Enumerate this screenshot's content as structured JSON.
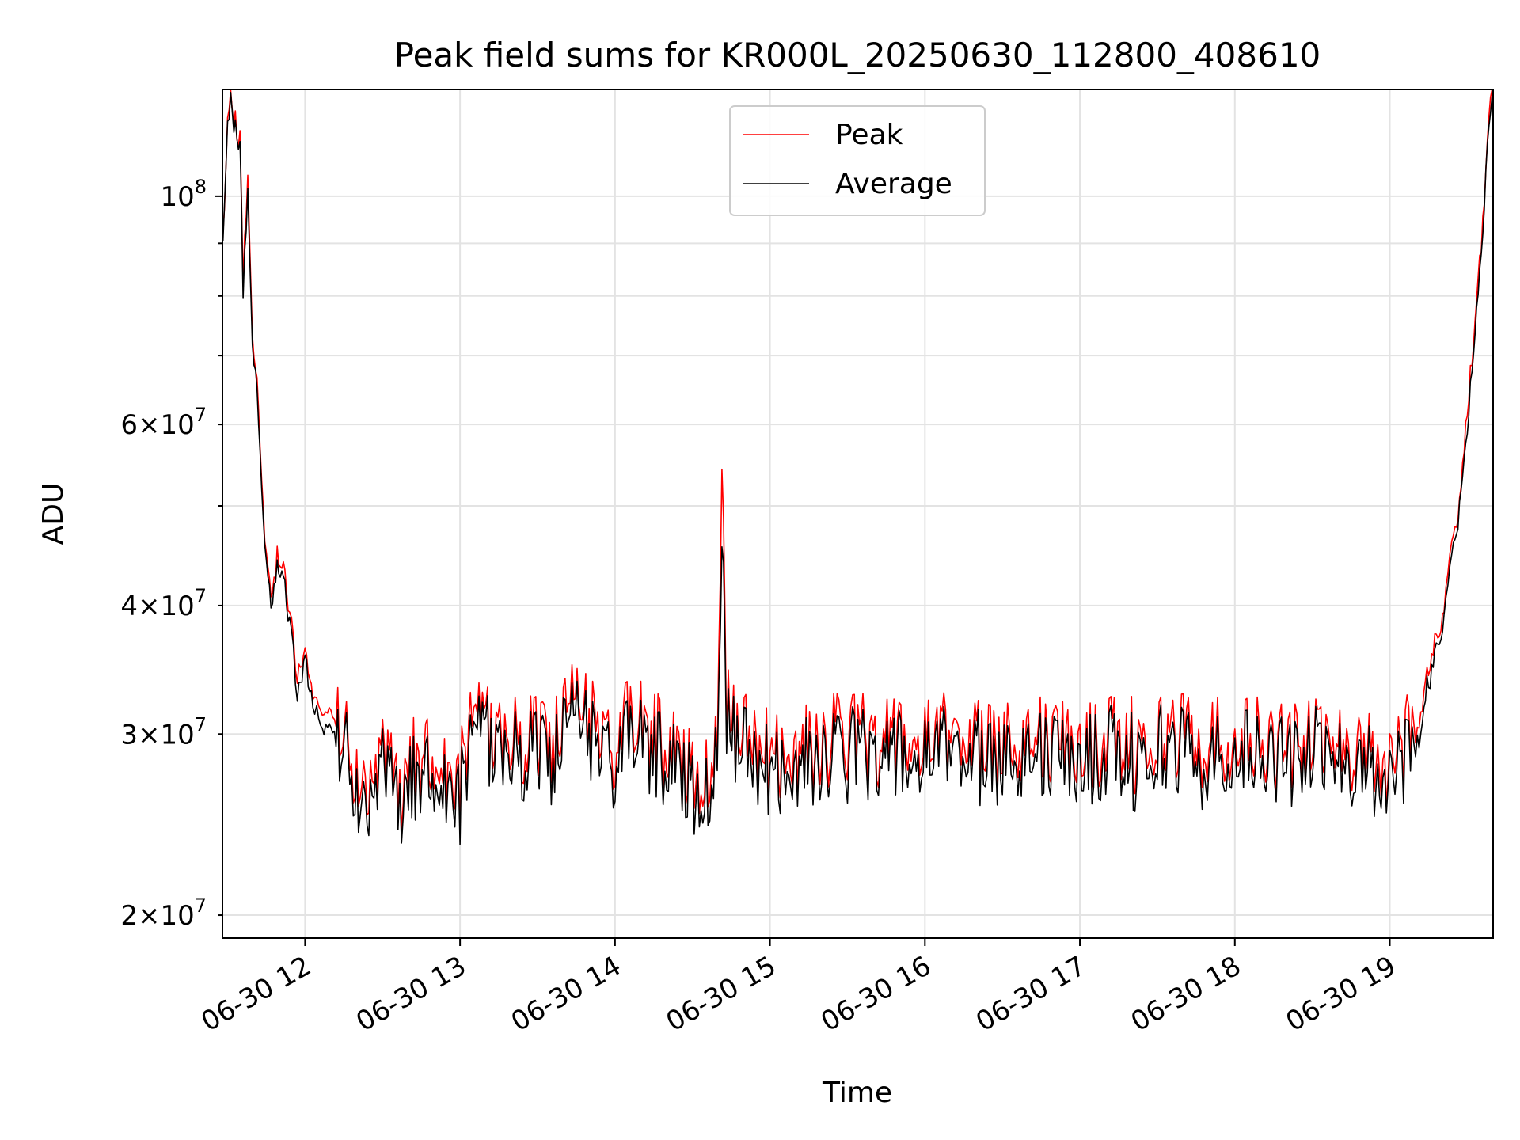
{
  "chart_data": {
    "type": "line",
    "title": "Peak field sums for KR000L_20250630_112800_408610",
    "xlabel": "Time",
    "ylabel": "ADU",
    "x_axis": {
      "type": "time",
      "range": [
        "2025-06-30 11:28",
        "2025-06-30 19:40"
      ],
      "tick_labels": [
        "06-30 12",
        "06-30 13",
        "06-30 14",
        "06-30 15",
        "06-30 16",
        "06-30 17",
        "06-30 18",
        "06-30 19"
      ],
      "tick_hours": [
        12,
        13,
        14,
        15,
        16,
        17,
        18,
        19
      ]
    },
    "y_axis": {
      "scale": "log",
      "range": [
        19000000,
        127000000
      ],
      "major_ticks": [
        100000000
      ],
      "major_tick_labels": [
        "10^8"
      ],
      "minor_ticks": [
        20000000,
        30000000,
        40000000,
        50000000,
        60000000,
        70000000,
        80000000,
        90000000
      ],
      "minor_tick_labels": [
        {
          "value": 20000000,
          "mantissa": "2",
          "exp": "7"
        },
        {
          "value": 30000000,
          "mantissa": "3",
          "exp": "7"
        },
        {
          "value": 40000000,
          "mantissa": "4",
          "exp": "7"
        },
        {
          "value": 60000000,
          "mantissa": "6",
          "exp": "7"
        }
      ]
    },
    "grid": true,
    "legend": {
      "placement": "top-center",
      "entries": [
        "Peak",
        "Average"
      ]
    },
    "series": [
      {
        "name": "Peak",
        "color": "#ff0000",
        "x_hours": [
          11.47,
          11.5,
          11.52,
          11.55,
          11.58,
          11.6,
          11.63,
          11.66,
          11.68,
          11.71,
          11.74,
          11.78,
          11.82,
          11.86,
          11.9,
          11.95,
          12.0,
          12.05,
          12.1,
          12.2,
          12.3,
          12.4,
          12.5,
          12.6,
          12.7,
          12.8,
          12.9,
          13.0,
          13.1,
          13.2,
          13.3,
          13.4,
          13.5,
          13.6,
          13.7,
          13.8,
          13.9,
          14.0,
          14.1,
          14.2,
          14.3,
          14.4,
          14.5,
          14.6,
          14.66,
          14.69,
          14.72,
          14.8,
          14.9,
          15.0,
          15.2,
          15.4,
          15.6,
          15.8,
          16.0,
          16.2,
          16.4,
          16.6,
          16.8,
          17.0,
          17.2,
          17.4,
          17.6,
          17.8,
          18.0,
          18.2,
          18.4,
          18.6,
          18.8,
          19.0,
          19.1,
          19.2,
          19.25,
          19.3,
          19.35,
          19.4,
          19.45,
          19.5,
          19.55,
          19.6,
          19.63,
          19.66
        ],
        "values": [
          90000000,
          116000000,
          125000000,
          117000000,
          113000000,
          82000000,
          104000000,
          72000000,
          68000000,
          58000000,
          46000000,
          40000000,
          45000000,
          44000000,
          39000000,
          34000000,
          36000000,
          33000000,
          31500000,
          31000000,
          29000000,
          25000000,
          29000000,
          26000000,
          28500000,
          29000000,
          28000000,
          27000000,
          31000000,
          30500000,
          30000000,
          29500000,
          30500000,
          29000000,
          31500000,
          32000000,
          30000000,
          29000000,
          31000000,
          30500000,
          29500000,
          29000000,
          27500000,
          28000000,
          28500000,
          59000000,
          32000000,
          30000000,
          29000000,
          28500000,
          29000000,
          29500000,
          30000000,
          29500000,
          29000000,
          30500000,
          29000000,
          30000000,
          29500000,
          29000000,
          30000000,
          29000000,
          30500000,
          29000000,
          30000000,
          29500000,
          29000000,
          30000000,
          29000000,
          28500000,
          29500000,
          31000000,
          35000000,
          37000000,
          40000000,
          45000000,
          50000000,
          62000000,
          75000000,
          95000000,
          115000000,
          127000000
        ]
      },
      {
        "name": "Average",
        "color": "#000000",
        "x_hours": [
          11.47,
          11.5,
          11.52,
          11.55,
          11.58,
          11.6,
          11.63,
          11.66,
          11.68,
          11.71,
          11.74,
          11.78,
          11.82,
          11.86,
          11.9,
          11.95,
          12.0,
          12.05,
          12.1,
          12.2,
          12.3,
          12.4,
          12.5,
          12.6,
          12.7,
          12.8,
          12.9,
          13.0,
          13.1,
          13.2,
          13.3,
          13.4,
          13.5,
          13.6,
          13.7,
          13.8,
          13.9,
          14.0,
          14.1,
          14.2,
          14.3,
          14.4,
          14.5,
          14.6,
          14.66,
          14.69,
          14.72,
          14.8,
          14.9,
          15.0,
          15.2,
          15.4,
          15.6,
          15.8,
          16.0,
          16.2,
          16.4,
          16.6,
          16.8,
          17.0,
          17.2,
          17.4,
          17.6,
          17.8,
          18.0,
          18.2,
          18.4,
          18.6,
          18.8,
          19.0,
          19.1,
          19.2,
          19.25,
          19.3,
          19.35,
          19.4,
          19.45,
          19.5,
          19.55,
          19.6,
          19.63,
          19.66
        ],
        "values": [
          89000000,
          115000000,
          124000000,
          116000000,
          112000000,
          80000000,
          102000000,
          71000000,
          67000000,
          57000000,
          45000000,
          39000000,
          44000000,
          43000000,
          38000000,
          33000000,
          35000000,
          32000000,
          30500000,
          30000000,
          28000000,
          24000000,
          28000000,
          25000000,
          27500000,
          28000000,
          27000000,
          26000000,
          30000000,
          29500000,
          29000000,
          28500000,
          29500000,
          28000000,
          30500000,
          31000000,
          29000000,
          28000000,
          30000000,
          29500000,
          28500000,
          28000000,
          26500000,
          27000000,
          27500000,
          50000000,
          31000000,
          29000000,
          28000000,
          27500000,
          28000000,
          28500000,
          29000000,
          28500000,
          28000000,
          29500000,
          28000000,
          29000000,
          28500000,
          28000000,
          29000000,
          28000000,
          29500000,
          28000000,
          29000000,
          28500000,
          28000000,
          29000000,
          28000000,
          27500000,
          28500000,
          30000000,
          34000000,
          36000000,
          39000000,
          44000000,
          49000000,
          60000000,
          73000000,
          93000000,
          113000000,
          125000000
        ]
      }
    ]
  }
}
